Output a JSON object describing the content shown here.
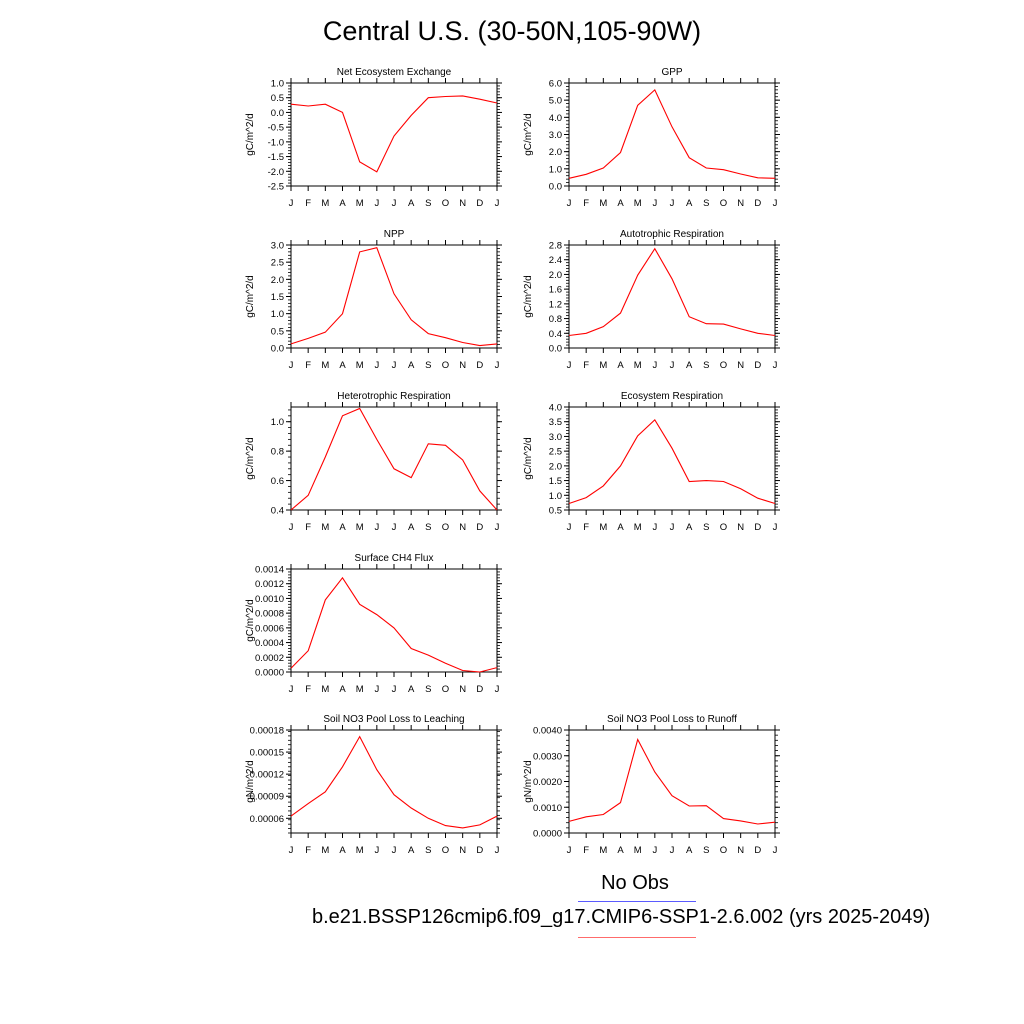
{
  "title": "Central U.S. (30-50N,105-90W)",
  "legend": {
    "no_obs": "No Obs",
    "case_label": "b.e21.BSSP126cmip6.f09_g17.CMIP6-SSP1-2.6.002 (yrs 2025-2049)",
    "obs_color": "#5b5bff",
    "model_color": "#ff6b6b"
  },
  "line_color": "#ff0000",
  "chart_data": [
    {
      "type": "line",
      "title": "Net Ecosystem Exchange",
      "ylabel": "gC/m^2/d",
      "categories": [
        "J",
        "F",
        "M",
        "A",
        "M",
        "J",
        "J",
        "A",
        "S",
        "O",
        "N",
        "D",
        "J"
      ],
      "ylim": [
        -2.5,
        1.0
      ],
      "yticks": [
        1.0,
        0.5,
        0.0,
        -0.5,
        -1.0,
        -1.5,
        -2.0,
        -2.5
      ],
      "ytick_labels": [
        "1.0",
        "0.5",
        "0.0",
        "-0.5",
        "-1.0",
        "-1.5",
        "-2.0",
        "-2.5"
      ],
      "values": [
        0.28,
        0.22,
        0.28,
        0.0,
        -1.68,
        -2.02,
        -0.8,
        -0.1,
        0.5,
        0.54,
        0.56,
        0.45,
        0.32
      ]
    },
    {
      "type": "line",
      "title": "GPP",
      "ylabel": "gC/m^2/d",
      "categories": [
        "J",
        "F",
        "M",
        "A",
        "M",
        "J",
        "J",
        "A",
        "S",
        "O",
        "N",
        "D",
        "J"
      ],
      "ylim": [
        0.0,
        6.0
      ],
      "yticks": [
        6.0,
        5.0,
        4.0,
        3.0,
        2.0,
        1.0,
        0.0
      ],
      "ytick_labels": [
        "6.0",
        "5.0",
        "4.0",
        "3.0",
        "2.0",
        "1.0",
        "0.0"
      ],
      "values": [
        0.45,
        0.68,
        1.05,
        1.95,
        4.7,
        5.6,
        3.45,
        1.65,
        1.05,
        0.95,
        0.7,
        0.48,
        0.45
      ]
    },
    {
      "type": "line",
      "title": "NPP",
      "ylabel": "gC/m^2/d",
      "categories": [
        "J",
        "F",
        "M",
        "A",
        "M",
        "J",
        "J",
        "A",
        "S",
        "O",
        "N",
        "D",
        "J"
      ],
      "ylim": [
        0.0,
        3.0
      ],
      "yticks": [
        3.0,
        2.5,
        2.0,
        1.5,
        1.0,
        0.5,
        0.0
      ],
      "ytick_labels": [
        "3.0",
        "2.5",
        "2.0",
        "1.5",
        "1.0",
        "0.5",
        "0.0"
      ],
      "values": [
        0.12,
        0.28,
        0.46,
        1.0,
        2.8,
        2.92,
        1.58,
        0.82,
        0.42,
        0.3,
        0.16,
        0.07,
        0.12
      ]
    },
    {
      "type": "line",
      "title": "Autotrophic Respiration",
      "ylabel": "gC/m^2/d",
      "categories": [
        "J",
        "F",
        "M",
        "A",
        "M",
        "J",
        "J",
        "A",
        "S",
        "O",
        "N",
        "D",
        "J"
      ],
      "ylim": [
        0.0,
        2.8
      ],
      "yticks": [
        2.8,
        2.4,
        2.0,
        1.6,
        1.2,
        0.8,
        0.4,
        0.0
      ],
      "ytick_labels": [
        "2.8",
        "2.4",
        "2.0",
        "1.6",
        "1.2",
        "0.8",
        "0.4",
        "0.0"
      ],
      "values": [
        0.34,
        0.4,
        0.58,
        0.95,
        1.98,
        2.7,
        1.88,
        0.85,
        0.66,
        0.65,
        0.52,
        0.4,
        0.34
      ]
    },
    {
      "type": "line",
      "title": "Heterotrophic Respiration",
      "ylabel": "gC/m^2/d",
      "categories": [
        "J",
        "F",
        "M",
        "A",
        "M",
        "J",
        "J",
        "A",
        "S",
        "O",
        "N",
        "D",
        "J"
      ],
      "ylim": [
        0.4,
        1.1
      ],
      "yticks": [
        1.0,
        0.8,
        0.6,
        0.4
      ],
      "ytick_labels": [
        "1.0",
        "0.8",
        "0.6",
        "0.4"
      ],
      "values": [
        0.4,
        0.5,
        0.76,
        1.04,
        1.09,
        0.88,
        0.68,
        0.62,
        0.85,
        0.84,
        0.74,
        0.53,
        0.4
      ]
    },
    {
      "type": "line",
      "title": "Ecosystem Respiration",
      "ylabel": "gC/m^2/d",
      "categories": [
        "J",
        "F",
        "M",
        "A",
        "M",
        "J",
        "J",
        "A",
        "S",
        "O",
        "N",
        "D",
        "J"
      ],
      "ylim": [
        0.5,
        4.0
      ],
      "yticks": [
        4.0,
        3.5,
        3.0,
        2.5,
        2.0,
        1.5,
        1.0,
        0.5
      ],
      "ytick_labels": [
        "4.0",
        "3.5",
        "3.0",
        "2.5",
        "2.0",
        "1.5",
        "1.0",
        "0.5"
      ],
      "values": [
        0.72,
        0.92,
        1.32,
        2.0,
        3.02,
        3.56,
        2.6,
        1.47,
        1.5,
        1.47,
        1.22,
        0.9,
        0.72
      ]
    },
    {
      "type": "line",
      "title": "Surface CH4 Flux",
      "ylabel": "gC/m^2/d",
      "categories": [
        "J",
        "F",
        "M",
        "A",
        "M",
        "J",
        "J",
        "A",
        "S",
        "O",
        "N",
        "D",
        "J"
      ],
      "ylim": [
        0.0,
        0.0014
      ],
      "yticks": [
        0.0014,
        0.0012,
        0.001,
        0.0008,
        0.0006,
        0.0004,
        0.0002,
        0.0
      ],
      "ytick_labels": [
        "0.0014",
        "0.0012",
        "0.0010",
        "0.0008",
        "0.0006",
        "0.0004",
        "0.0002",
        "0.0000"
      ],
      "values": [
        5e-05,
        0.00029,
        0.00098,
        0.00128,
        0.00092,
        0.00078,
        0.0006,
        0.00032,
        0.00023,
        0.00012,
        2e-05,
        0.0,
        6e-05
      ]
    },
    {
      "type": "line",
      "title": "Soil NO3 Pool Loss to Leaching",
      "ylabel": "gN/m^2/d",
      "categories": [
        "J",
        "F",
        "M",
        "A",
        "M",
        "J",
        "J",
        "A",
        "S",
        "O",
        "N",
        "D",
        "J"
      ],
      "ylim": [
        4e-05,
        0.00018
      ],
      "yticks": [
        0.00018,
        0.00015,
        0.00012,
        9e-05,
        6e-05
      ],
      "ytick_labels": [
        "0.00018",
        "0.00015",
        "0.00012",
        "0.00009",
        "0.00006"
      ],
      "values": [
        6.3e-05,
        8e-05,
        9.6e-05,
        0.00013,
        0.000171,
        0.000126,
        9.2e-05,
        7.4e-05,
        6e-05,
        5e-05,
        4.7e-05,
        5.1e-05,
        6.3e-05
      ]
    },
    {
      "type": "line",
      "title": "Soil NO3 Pool Loss to Runoff",
      "ylabel": "gN/m^2/d",
      "categories": [
        "J",
        "F",
        "M",
        "A",
        "M",
        "J",
        "J",
        "A",
        "S",
        "O",
        "N",
        "D",
        "J"
      ],
      "ylim": [
        0.0,
        0.004
      ],
      "yticks": [
        0.004,
        0.003,
        0.002,
        0.001,
        0.0
      ],
      "ytick_labels": [
        "0.0040",
        "0.0030",
        "0.0020",
        "0.0010",
        "0.0000"
      ],
      "values": [
        0.00045,
        0.00063,
        0.00072,
        0.00118,
        0.00363,
        0.00237,
        0.00145,
        0.00105,
        0.00106,
        0.00056,
        0.00047,
        0.00035,
        0.00042
      ]
    }
  ]
}
